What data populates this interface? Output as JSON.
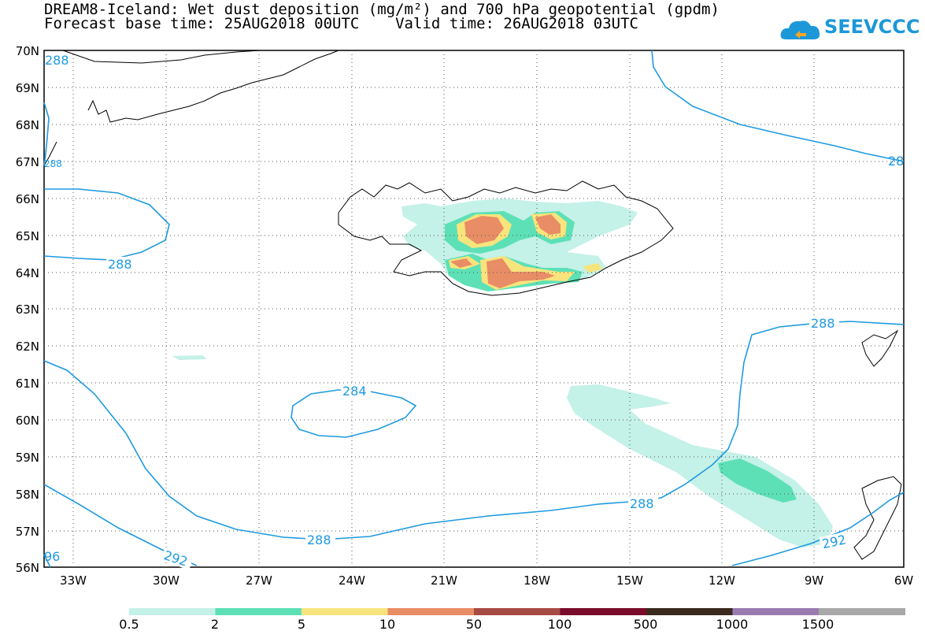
{
  "title": {
    "line1": "DREAM8-Iceland: Wet dust deposition (mg/m²) and 700 hPa geopotential (gpdm)",
    "line2": "Forecast base time: 25AUG2018 00UTC    Valid time: 26AUG2018 03UTC"
  },
  "logo": {
    "text": "SEEVCCC",
    "icon": "cloud-icon",
    "color": "#1c98d8"
  },
  "axes": {
    "lat_labels": [
      "70N",
      "69N",
      "68N",
      "67N",
      "66N",
      "65N",
      "64N",
      "63N",
      "62N",
      "61N",
      "60N",
      "59N",
      "58N",
      "57N",
      "56N"
    ],
    "lon_labels": [
      "33W",
      "30W",
      "27W",
      "24W",
      "21W",
      "18W",
      "15W",
      "12W",
      "9W",
      "6W"
    ]
  },
  "contour_labels": [
    "288",
    "288",
    "284",
    "288",
    "288",
    "292",
    "292",
    "288",
    "288",
    "96",
    "28"
  ],
  "colorbar": {
    "labels": [
      "0.5",
      "2",
      "5",
      "10",
      "50",
      "100",
      "500",
      "1000",
      "1500"
    ],
    "colors": [
      "#c4f1e8",
      "#5de0b6",
      "#f8e47c",
      "#e88d65",
      "#a84a44",
      "#7a0b2a",
      "#3a2a1e",
      "#9a7bb0",
      "#a8a8a8"
    ]
  },
  "contour_color": "#1e9ae0"
}
